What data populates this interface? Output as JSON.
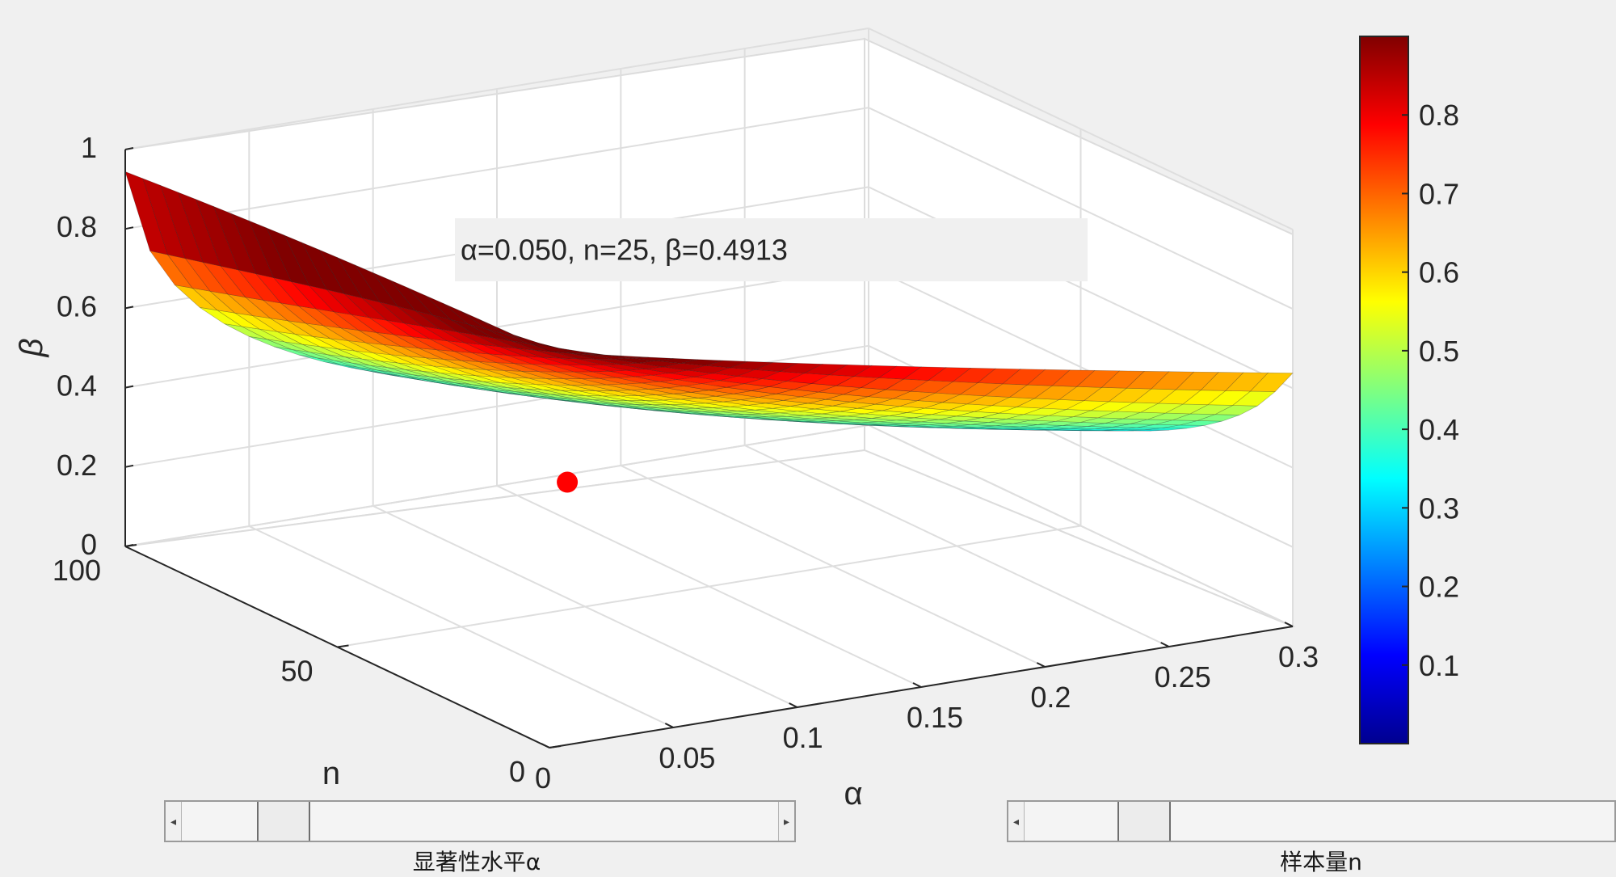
{
  "annotation": {
    "text": "α=0.050, n=25, β=0.4913"
  },
  "chart_data": {
    "type": "surface",
    "zlabel": "β",
    "xlabel": "α",
    "ylabel": "n",
    "zlim": [
      0,
      1
    ],
    "xlim": [
      0,
      0.3
    ],
    "ylim": [
      0,
      100
    ],
    "z_ticks": [
      "0",
      "0.2",
      "0.4",
      "0.6",
      "0.8",
      "1"
    ],
    "x_ticks": [
      "0",
      "0.05",
      "0.1",
      "0.15",
      "0.2",
      "0.25",
      "0.3"
    ],
    "y_ticks": [
      "0",
      "50",
      "100"
    ],
    "colormap": "jet",
    "colorbar_ticks": [
      "0.1",
      "0.2",
      "0.3",
      "0.4",
      "0.5",
      "0.6",
      "0.7",
      "0.8"
    ],
    "colorbar_range": [
      0,
      0.9
    ],
    "marker": {
      "alpha": 0.05,
      "n": 25,
      "beta": 0.4913,
      "color": "#ff0000"
    },
    "grid": true
  },
  "controls": {
    "alpha_slider": {
      "label": "显著性水平α",
      "value": 0.05,
      "min": 0,
      "max": 0.3
    },
    "n_slider": {
      "label": "样本量n",
      "value": 25,
      "min": 0,
      "max": 100
    }
  }
}
